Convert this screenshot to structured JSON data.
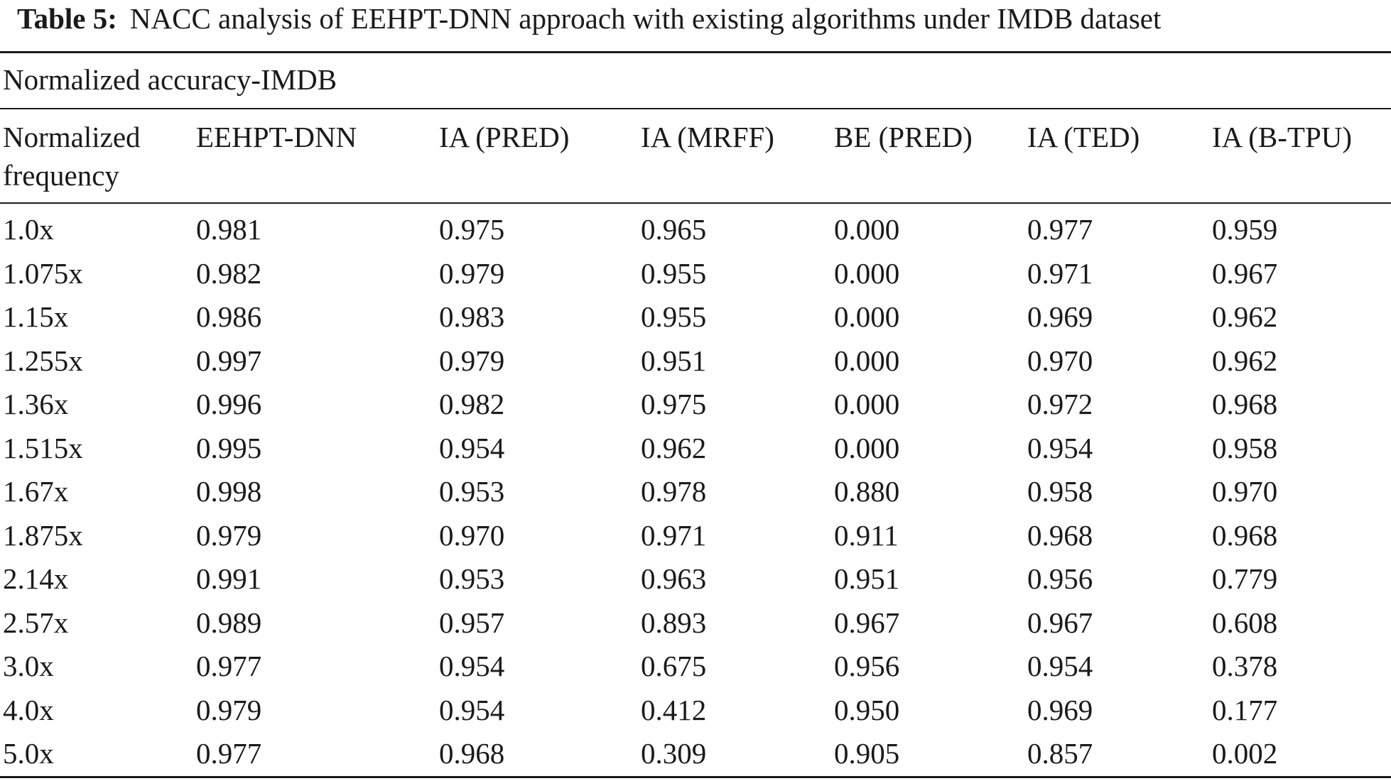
{
  "caption": {
    "label": "Table 5:",
    "text": "NACC analysis of EEHPT-DNN approach with existing algorithms under IMDB dataset"
  },
  "section_title": "Normalized accuracy-IMDB",
  "headers": {
    "freq_line1": "Normalized",
    "freq_line2": "frequency",
    "eehpt": "EEHPT-DNN",
    "ia_pred": "IA (PRED)",
    "ia_mrff": "IA (MRFF)",
    "be_pred": "BE (PRED)",
    "ia_ted": "IA (TED)",
    "ia_btpu": "IA (B-TPU)"
  },
  "rows": [
    [
      "1.0x",
      "0.981",
      "0.975",
      "0.965",
      "0.000",
      "0.977",
      "0.959"
    ],
    [
      "1.075x",
      "0.982",
      "0.979",
      "0.955",
      "0.000",
      "0.971",
      "0.967"
    ],
    [
      "1.15x",
      "0.986",
      "0.983",
      "0.955",
      "0.000",
      "0.969",
      "0.962"
    ],
    [
      "1.255x",
      "0.997",
      "0.979",
      "0.951",
      "0.000",
      "0.970",
      "0.962"
    ],
    [
      "1.36x",
      "0.996",
      "0.982",
      "0.975",
      "0.000",
      "0.972",
      "0.968"
    ],
    [
      "1.515x",
      "0.995",
      "0.954",
      "0.962",
      "0.000",
      "0.954",
      "0.958"
    ],
    [
      "1.67x",
      "0.998",
      "0.953",
      "0.978",
      "0.880",
      "0.958",
      "0.970"
    ],
    [
      "1.875x",
      "0.979",
      "0.970",
      "0.971",
      "0.911",
      "0.968",
      "0.968"
    ],
    [
      "2.14x",
      "0.991",
      "0.953",
      "0.963",
      "0.951",
      "0.956",
      "0.779"
    ],
    [
      "2.57x",
      "0.989",
      "0.957",
      "0.893",
      "0.967",
      "0.967",
      "0.608"
    ],
    [
      "3.0x",
      "0.977",
      "0.954",
      "0.675",
      "0.956",
      "0.954",
      "0.378"
    ],
    [
      "4.0x",
      "0.979",
      "0.954",
      "0.412",
      "0.950",
      "0.969",
      "0.177"
    ],
    [
      "5.0x",
      "0.977",
      "0.968",
      "0.309",
      "0.905",
      "0.857",
      "0.002"
    ]
  ]
}
